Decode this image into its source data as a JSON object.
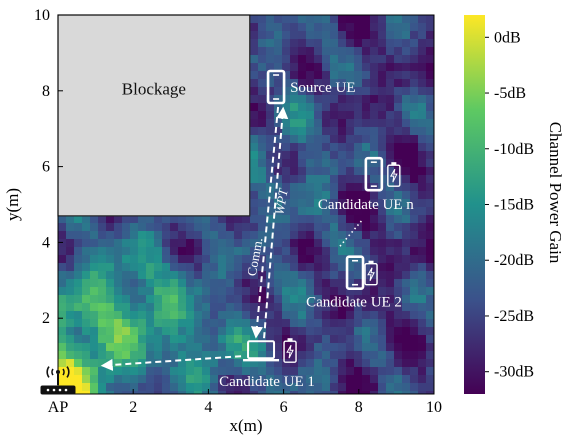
{
  "chart_data": {
    "type": "heatmap",
    "xlabel": "x(m)",
    "ylabel": "y(m)",
    "xlim": [
      0,
      10
    ],
    "ylim": [
      0,
      10
    ],
    "xticks": [
      2,
      4,
      6,
      8,
      10
    ],
    "yticks": [
      2,
      4,
      6,
      8,
      10
    ],
    "grid": false,
    "colorbar": {
      "label": "Channel Power Gain",
      "range_db": [
        -32,
        2
      ],
      "ticks": [
        {
          "value": 0,
          "label": "0dB"
        },
        {
          "value": -5,
          "label": "-5dB"
        },
        {
          "value": -10,
          "label": "-10dB"
        },
        {
          "value": -15,
          "label": "-15dB"
        },
        {
          "value": -20,
          "label": "-20dB"
        },
        {
          "value": -25,
          "label": "-25dB"
        },
        {
          "value": -30,
          "label": "-30dB"
        }
      ],
      "colors": [
        "#440154",
        "#3b528b",
        "#21918c",
        "#5ec962",
        "#fde725"
      ]
    },
    "blockage": {
      "label": "Blockage",
      "x0": 0,
      "x1": 5.1,
      "y0": 4.7,
      "y1": 10
    },
    "ap": {
      "label": "AP",
      "x": 0,
      "y": 0
    },
    "source_ue": {
      "label": "Source UE",
      "x": 5.8,
      "y": 8.1
    },
    "candidates": [
      {
        "label": "Candidate UE 1",
        "x": 5.4,
        "y": 1.05
      },
      {
        "label": "Candidate UE 2",
        "x": 7.9,
        "y": 3.2
      },
      {
        "label": "Candidate UE n",
        "x": 8.4,
        "y": 5.8
      }
    ],
    "link_labels": {
      "wpt": "WPT",
      "comm": "Comm."
    }
  }
}
